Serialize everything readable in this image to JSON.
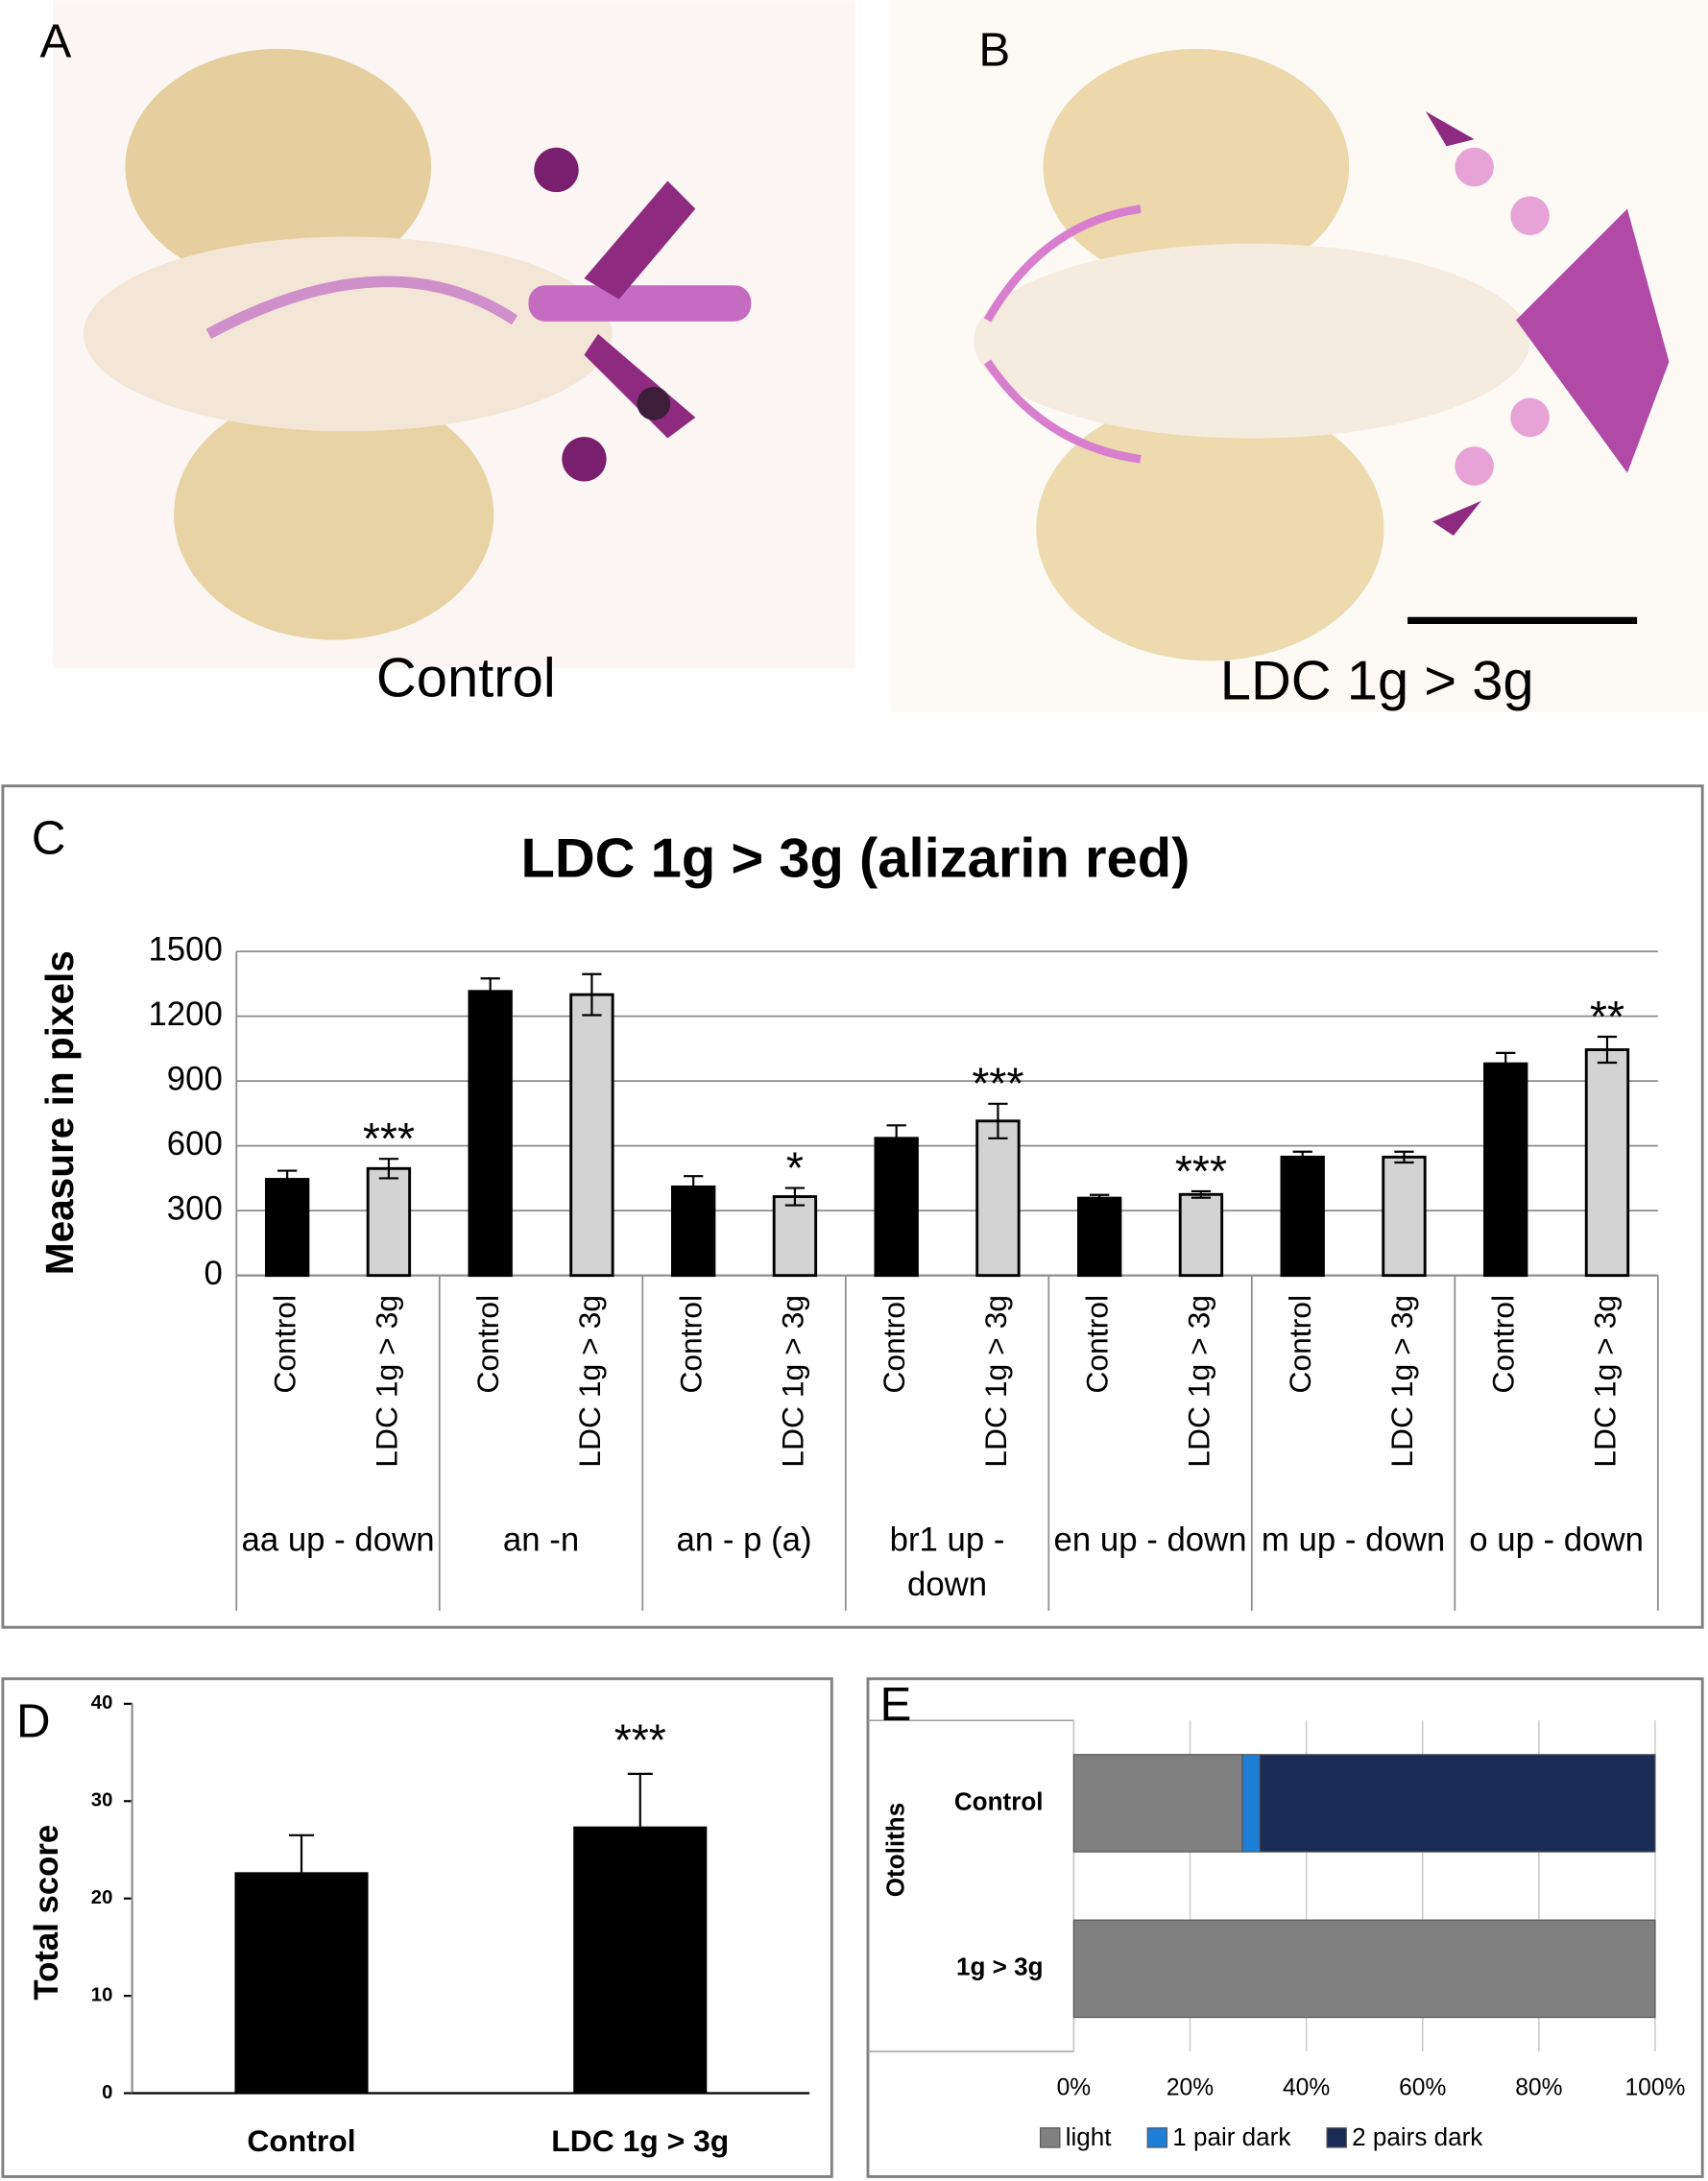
{
  "panel_labels": [
    "A",
    "B",
    "C",
    "D",
    "E"
  ],
  "photos": [
    {
      "caption": "Control"
    },
    {
      "caption": "LDC 1g > 3g"
    }
  ],
  "chart_data": [
    {
      "type": "bar",
      "title": "LDC 1g > 3g (alizarin red)",
      "y_label": "Measure in pixels",
      "categories": [
        "aa up - down",
        "an -n",
        "an - p (a)",
        "br1 up - down",
        "en up - down",
        "m up - down",
        "o up - down"
      ],
      "series": [
        {
          "name": "Control",
          "color": "#000000",
          "values": [
            445,
            1315,
            410,
            635,
            358,
            548,
            980
          ],
          "errors": [
            40,
            60,
            50,
            60,
            15,
            25,
            50
          ],
          "annotations": [
            null,
            null,
            null,
            null,
            null,
            null,
            null
          ]
        },
        {
          "name": "LDC 1g > 3g",
          "color": "#d3d3d3",
          "values": [
            495,
            1300,
            365,
            715,
            375,
            548,
            1045
          ],
          "errors": [
            45,
            95,
            40,
            80,
            15,
            25,
            60
          ],
          "annotations": [
            "***",
            null,
            "*",
            "***",
            "***",
            null,
            "**"
          ]
        }
      ],
      "ylim": [
        0,
        1500
      ],
      "yticks": [
        0,
        300,
        600,
        900,
        1200,
        1500
      ],
      "grid": true
    },
    {
      "type": "bar",
      "y_label": "Total score",
      "categories": [
        "Control",
        "LDC 1g > 3g"
      ],
      "values": [
        22.7,
        27.4
      ],
      "errors": [
        3.8,
        5.4
      ],
      "annotations": [
        null,
        "***"
      ],
      "color": "#000000",
      "ylim": [
        0,
        40
      ],
      "yticks": [
        0,
        10,
        20,
        30,
        40
      ],
      "grid": false
    },
    {
      "type": "hbar",
      "y_label": "Otoliths",
      "categories": [
        "Control",
        "1g > 3g"
      ],
      "series": [
        {
          "name": "light",
          "color": "#808080",
          "values": [
            29,
            100
          ]
        },
        {
          "name": "1 pair dark",
          "color": "#1e7fd8",
          "values": [
            3,
            0
          ]
        },
        {
          "name": "2 pairs dark",
          "color": "#1a2c55",
          "values": [
            68,
            0
          ]
        }
      ],
      "xlim": [
        0,
        100
      ],
      "xticks": [
        {
          "value": 0,
          "label": "0%"
        },
        {
          "value": 20,
          "label": "20%"
        },
        {
          "value": 40,
          "label": "40%"
        },
        {
          "value": 60,
          "label": "60%"
        },
        {
          "value": 80,
          "label": "80%"
        },
        {
          "value": 100,
          "label": "100%"
        }
      ],
      "grid": true,
      "legend": "bottom"
    }
  ]
}
